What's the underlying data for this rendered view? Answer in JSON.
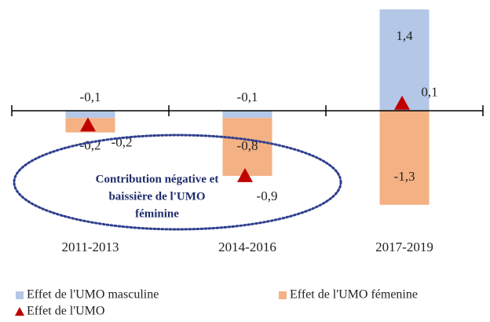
{
  "chart_data": {
    "type": "bar",
    "stacked": true,
    "categories": [
      "2011-2013",
      "2014-2016",
      "2017-2019"
    ],
    "series": [
      {
        "name": "Effet de l'UMO masculine",
        "color": "#b4c7e7",
        "values": [
          -0.1,
          -0.1,
          1.4
        ],
        "value_labels": [
          "-0,1",
          "-0,1",
          "1,4"
        ]
      },
      {
        "name": "Effet de l'UMO fémenine",
        "color": "#f4b183",
        "values": [
          -0.2,
          -0.8,
          -1.3
        ],
        "value_labels": [
          "-0,2",
          "-0,8",
          "-1,3"
        ]
      },
      {
        "name": "Effet de l'UMO",
        "type": "marker",
        "color": "#c00000",
        "values": [
          -0.2,
          -0.9,
          0.1
        ],
        "value_labels": [
          "-0,2",
          "-0,9",
          "0,1"
        ]
      }
    ],
    "annotation": [
      "Contribution négative et",
      "baissière de l'UMO",
      "féminine"
    ],
    "ylim": [
      -1.4,
      1.4
    ]
  }
}
